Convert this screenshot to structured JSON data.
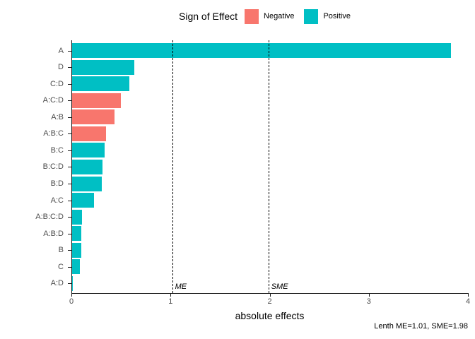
{
  "chart_data": {
    "type": "bar",
    "orientation": "horizontal",
    "title": "",
    "xlabel": "absolute effects",
    "ylabel": "",
    "xlim": [
      0,
      4
    ],
    "xticks": [
      0,
      1,
      2,
      3,
      4
    ],
    "grid": false,
    "categories": [
      "A",
      "D",
      "C:D",
      "A:C:D",
      "A:B",
      "A:B:C",
      "B:C",
      "B:C:D",
      "B:D",
      "A:C",
      "A:B:C:D",
      "A:B:D",
      "B",
      "C",
      "A:D"
    ],
    "values": [
      3.82,
      0.63,
      0.58,
      0.49,
      0.43,
      0.34,
      0.33,
      0.31,
      0.3,
      0.22,
      0.1,
      0.09,
      0.09,
      0.08,
      0.01
    ],
    "signs": [
      "Positive",
      "Positive",
      "Positive",
      "Negative",
      "Negative",
      "Negative",
      "Positive",
      "Positive",
      "Positive",
      "Positive",
      "Positive",
      "Positive",
      "Positive",
      "Positive",
      "Positive"
    ],
    "colors": {
      "Negative": "#F8766D",
      "Positive": "#00BFC4"
    },
    "legend": {
      "position": "top",
      "title": "Sign of Effect",
      "entries": [
        {
          "label": "Negative",
          "color": "#F8766D"
        },
        {
          "label": "Positive",
          "color": "#00BFC4"
        }
      ]
    },
    "reference_lines": [
      {
        "label": "ME",
        "value": 1.01
      },
      {
        "label": "SME",
        "value": 1.98
      }
    ],
    "caption": "Lenth ME=1.01, SME=1.98"
  }
}
